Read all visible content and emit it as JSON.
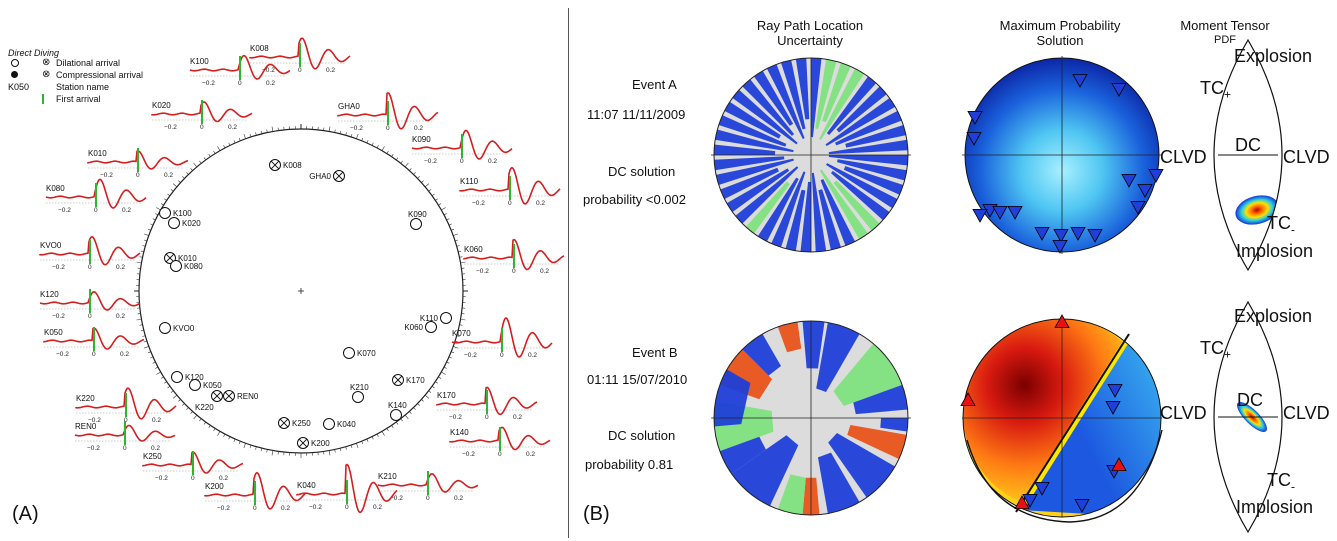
{
  "panel_a": {
    "label": "(A)",
    "legend": {
      "title": "Direct Diving",
      "items": [
        {
          "label": "Dilational arrival"
        },
        {
          "label": "Compressional arrival"
        },
        {
          "key": "K050",
          "label": "Station name"
        },
        {
          "label": "First arrival"
        }
      ]
    },
    "stations": [
      {
        "name": "K008",
        "polarity": "compressional"
      },
      {
        "name": "GHA0",
        "polarity": "compressional"
      },
      {
        "name": "K100",
        "polarity": "dilational"
      },
      {
        "name": "K020",
        "polarity": "dilational"
      },
      {
        "name": "K010",
        "polarity": "compressional"
      },
      {
        "name": "K080",
        "polarity": "dilational"
      },
      {
        "name": "K090",
        "polarity": "dilational"
      },
      {
        "name": "KVO0",
        "polarity": "dilational"
      },
      {
        "name": "K110",
        "polarity": "dilational"
      },
      {
        "name": "K060",
        "polarity": "dilational"
      },
      {
        "name": "K070",
        "polarity": "dilational"
      },
      {
        "name": "K120",
        "polarity": "dilational"
      },
      {
        "name": "K050",
        "polarity": "dilational"
      },
      {
        "name": "K220",
        "polarity": "compressional"
      },
      {
        "name": "REN0",
        "polarity": "compressional"
      },
      {
        "name": "K170",
        "polarity": "compressional"
      },
      {
        "name": "K210",
        "polarity": "dilational"
      },
      {
        "name": "K140",
        "polarity": "dilational"
      },
      {
        "name": "K250",
        "polarity": "compressional"
      },
      {
        "name": "K040",
        "polarity": "dilational"
      },
      {
        "name": "K200",
        "polarity": "compressional"
      }
    ],
    "trace_labels": [
      "K100",
      "K008",
      "GHA0",
      "K020",
      "K090",
      "K010",
      "K110",
      "K080",
      "K060",
      "KVO0",
      "K120",
      "K050",
      "K070",
      "K220",
      "K170",
      "REN0",
      "K140",
      "K250",
      "K210",
      "K200",
      "K040"
    ],
    "tick_labels": {
      "minus": "−0.2",
      "zero": "0",
      "plus": "0.2",
      "minus_alt": "−0.1",
      "zero_alt": "0.1"
    }
  },
  "panel_b": {
    "label": "(B)",
    "column_titles": {
      "ray_path": [
        "Ray Path Location",
        "Uncertainty"
      ],
      "max_prob": [
        "Maximum Probability",
        "Solution"
      ],
      "moment_tensor": [
        "Moment Tensor",
        "PDF"
      ]
    },
    "events": [
      {
        "name": "Event A",
        "datetime": "11:07 11/11/2009",
        "dc_line1": "DC solution",
        "dc_line2": "probability <0.002"
      },
      {
        "name": "Event B",
        "datetime": "01:11 15/07/2010",
        "dc_line1": "DC solution",
        "dc_line2": "probability 0.81"
      }
    ],
    "lune_labels": {
      "top": "Explosion",
      "bottom": "Implosion",
      "left": "CLVD",
      "right": "CLVD",
      "center": "DC",
      "tc_plus": "TC",
      "tc_plus_sub": "+",
      "tc_minus": "TC",
      "tc_minus_sub": "-"
    },
    "colors": {
      "trace": "#d41f1f",
      "first_arrival": "#2fb52f",
      "blue": "#1f3fd8",
      "red_tri": "#e81010",
      "green": "#7ee07e",
      "orange": "#e8531a"
    }
  }
}
